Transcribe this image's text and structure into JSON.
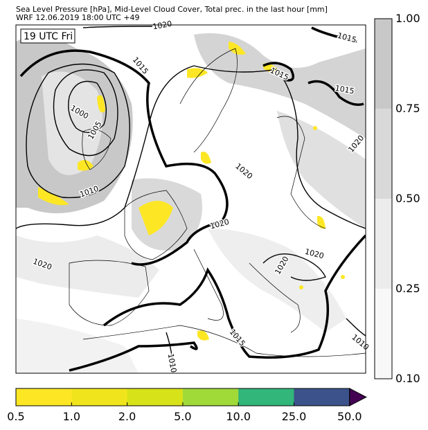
{
  "title": {
    "line1": "Sea Level Pressure [hPa], Mid-Level Cloud Cover, Total prec. in the last hour [mm]",
    "line2": "WRF 12.06.2019 18:00 UTC +49"
  },
  "map": {
    "time_label": "19 UTC Fri",
    "isobar_labels": [
      "1020",
      "1015",
      "1015",
      "1000",
      "1005",
      "1010",
      "1015",
      "1015",
      "1020",
      "1020",
      "1020",
      "1020",
      "1020",
      "1020",
      "1015",
      "1010",
      "1010"
    ],
    "colors": {
      "isobar": "#000000",
      "coastline": "#000000",
      "cloud_gray": "#c8c8c8",
      "precip_yellow": "#fde725"
    }
  },
  "cloud_colorbar": {
    "ticks": [
      "1.00",
      "0.75",
      "0.50",
      "0.25",
      "0.10"
    ],
    "colors": [
      "#c8c8c8",
      "#d9d9d9",
      "#ececec",
      "#f8f8f8"
    ]
  },
  "precip_colorbar": {
    "ticks": [
      "0.5",
      "1.0",
      "2.0",
      "5.0",
      "10.0",
      "25.0",
      "50.0"
    ],
    "colors": [
      "#fde725",
      "#f0e51c",
      "#d8e219",
      "#a0da39",
      "#32b67a",
      "#3b528b",
      "#440154"
    ],
    "extend": "max"
  }
}
